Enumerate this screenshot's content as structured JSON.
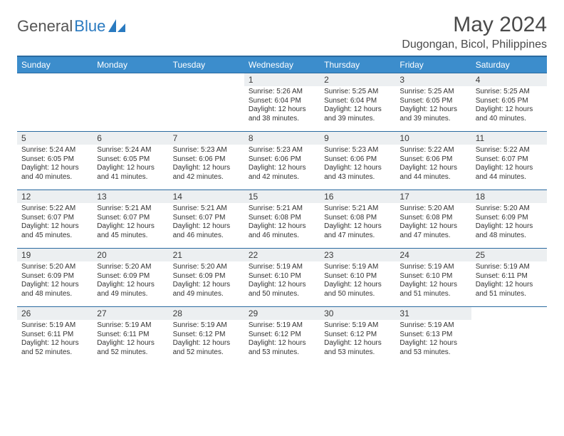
{
  "logo": {
    "word1": "General",
    "word2": "Blue"
  },
  "title": {
    "month": "May 2024",
    "location": "Dugongan, Bicol, Philippines"
  },
  "header_bg": "#3c8dcc",
  "rule_color": "#2a6aa0",
  "daynum_bg": "#eceff1",
  "daynames": [
    "Sunday",
    "Monday",
    "Tuesday",
    "Wednesday",
    "Thursday",
    "Friday",
    "Saturday"
  ],
  "weeks": [
    [
      null,
      null,
      null,
      {
        "n": "1",
        "sr": "5:26 AM",
        "ss": "6:04 PM",
        "dl": "12 hours and 38 minutes."
      },
      {
        "n": "2",
        "sr": "5:25 AM",
        "ss": "6:04 PM",
        "dl": "12 hours and 39 minutes."
      },
      {
        "n": "3",
        "sr": "5:25 AM",
        "ss": "6:05 PM",
        "dl": "12 hours and 39 minutes."
      },
      {
        "n": "4",
        "sr": "5:25 AM",
        "ss": "6:05 PM",
        "dl": "12 hours and 40 minutes."
      }
    ],
    [
      {
        "n": "5",
        "sr": "5:24 AM",
        "ss": "6:05 PM",
        "dl": "12 hours and 40 minutes."
      },
      {
        "n": "6",
        "sr": "5:24 AM",
        "ss": "6:05 PM",
        "dl": "12 hours and 41 minutes."
      },
      {
        "n": "7",
        "sr": "5:23 AM",
        "ss": "6:06 PM",
        "dl": "12 hours and 42 minutes."
      },
      {
        "n": "8",
        "sr": "5:23 AM",
        "ss": "6:06 PM",
        "dl": "12 hours and 42 minutes."
      },
      {
        "n": "9",
        "sr": "5:23 AM",
        "ss": "6:06 PM",
        "dl": "12 hours and 43 minutes."
      },
      {
        "n": "10",
        "sr": "5:22 AM",
        "ss": "6:06 PM",
        "dl": "12 hours and 44 minutes."
      },
      {
        "n": "11",
        "sr": "5:22 AM",
        "ss": "6:07 PM",
        "dl": "12 hours and 44 minutes."
      }
    ],
    [
      {
        "n": "12",
        "sr": "5:22 AM",
        "ss": "6:07 PM",
        "dl": "12 hours and 45 minutes."
      },
      {
        "n": "13",
        "sr": "5:21 AM",
        "ss": "6:07 PM",
        "dl": "12 hours and 45 minutes."
      },
      {
        "n": "14",
        "sr": "5:21 AM",
        "ss": "6:07 PM",
        "dl": "12 hours and 46 minutes."
      },
      {
        "n": "15",
        "sr": "5:21 AM",
        "ss": "6:08 PM",
        "dl": "12 hours and 46 minutes."
      },
      {
        "n": "16",
        "sr": "5:21 AM",
        "ss": "6:08 PM",
        "dl": "12 hours and 47 minutes."
      },
      {
        "n": "17",
        "sr": "5:20 AM",
        "ss": "6:08 PM",
        "dl": "12 hours and 47 minutes."
      },
      {
        "n": "18",
        "sr": "5:20 AM",
        "ss": "6:09 PM",
        "dl": "12 hours and 48 minutes."
      }
    ],
    [
      {
        "n": "19",
        "sr": "5:20 AM",
        "ss": "6:09 PM",
        "dl": "12 hours and 48 minutes."
      },
      {
        "n": "20",
        "sr": "5:20 AM",
        "ss": "6:09 PM",
        "dl": "12 hours and 49 minutes."
      },
      {
        "n": "21",
        "sr": "5:20 AM",
        "ss": "6:09 PM",
        "dl": "12 hours and 49 minutes."
      },
      {
        "n": "22",
        "sr": "5:19 AM",
        "ss": "6:10 PM",
        "dl": "12 hours and 50 minutes."
      },
      {
        "n": "23",
        "sr": "5:19 AM",
        "ss": "6:10 PM",
        "dl": "12 hours and 50 minutes."
      },
      {
        "n": "24",
        "sr": "5:19 AM",
        "ss": "6:10 PM",
        "dl": "12 hours and 51 minutes."
      },
      {
        "n": "25",
        "sr": "5:19 AM",
        "ss": "6:11 PM",
        "dl": "12 hours and 51 minutes."
      }
    ],
    [
      {
        "n": "26",
        "sr": "5:19 AM",
        "ss": "6:11 PM",
        "dl": "12 hours and 52 minutes."
      },
      {
        "n": "27",
        "sr": "5:19 AM",
        "ss": "6:11 PM",
        "dl": "12 hours and 52 minutes."
      },
      {
        "n": "28",
        "sr": "5:19 AM",
        "ss": "6:12 PM",
        "dl": "12 hours and 52 minutes."
      },
      {
        "n": "29",
        "sr": "5:19 AM",
        "ss": "6:12 PM",
        "dl": "12 hours and 53 minutes."
      },
      {
        "n": "30",
        "sr": "5:19 AM",
        "ss": "6:12 PM",
        "dl": "12 hours and 53 minutes."
      },
      {
        "n": "31",
        "sr": "5:19 AM",
        "ss": "6:13 PM",
        "dl": "12 hours and 53 minutes."
      },
      null
    ]
  ],
  "labels": {
    "sunrise": "Sunrise: ",
    "sunset": "Sunset: ",
    "daylight": "Daylight: "
  }
}
